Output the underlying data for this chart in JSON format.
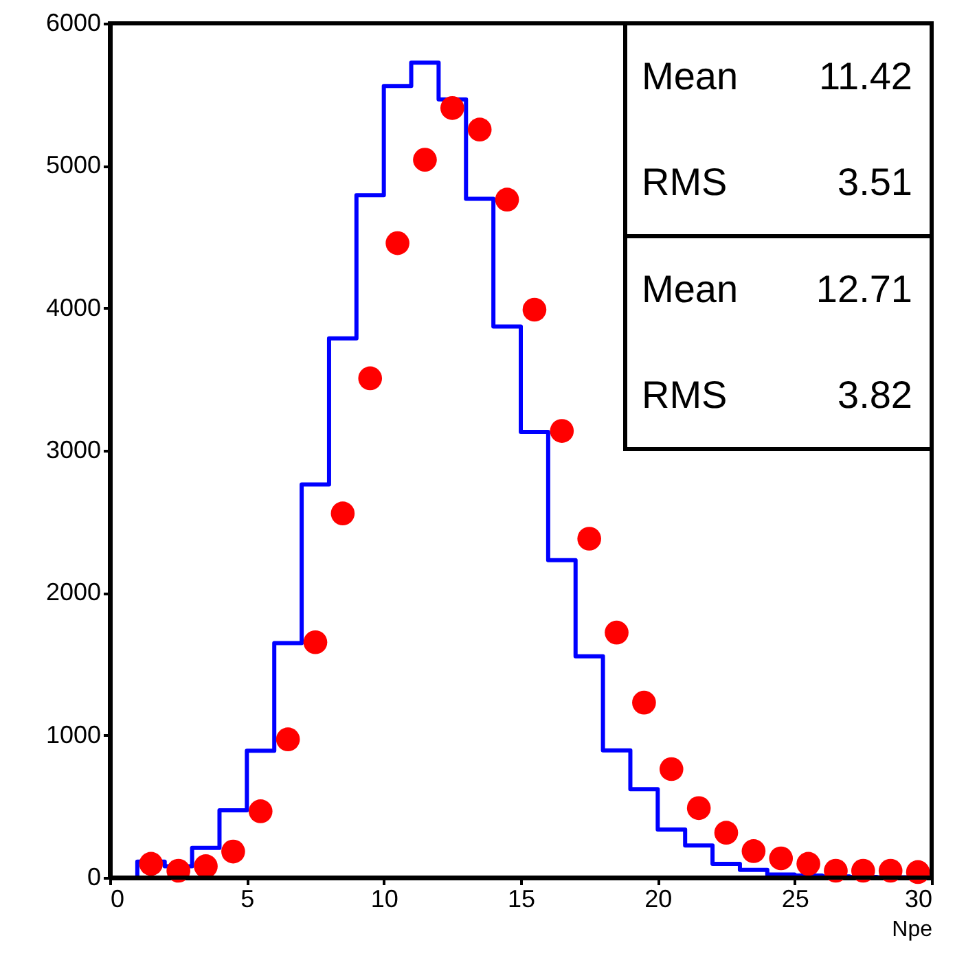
{
  "chart_data": {
    "type": "histogram",
    "xlabel": "Npe",
    "xlim": [
      0,
      30
    ],
    "xticks": [
      0,
      5,
      10,
      15,
      20,
      25,
      30
    ],
    "ylim": [
      0,
      6000
    ],
    "yticks": [
      0,
      1000,
      2000,
      3000,
      4000,
      5000,
      6000
    ],
    "grid": false,
    "series": [
      {
        "type": "histogram",
        "color": "#0000ff",
        "bins": [
          0,
          1,
          2,
          3,
          4,
          5,
          6,
          7,
          8,
          9,
          10,
          11,
          12,
          13,
          14,
          15,
          16,
          17,
          18,
          19,
          20,
          21,
          22,
          23,
          24,
          25,
          26,
          27,
          28,
          29,
          30
        ],
        "values": [
          0,
          112,
          80,
          208,
          473,
          891,
          1647,
          2761,
          3787,
          4793,
          5560,
          5724,
          5466,
          4768,
          3871,
          3130,
          2230,
          1554,
          894,
          621,
          338,
          225,
          97,
          54,
          22,
          15,
          8,
          5,
          3,
          2
        ]
      },
      {
        "type": "scatter",
        "color": "#ff0000",
        "marker": "circle",
        "x": [
          1.5,
          2.5,
          3.5,
          4.5,
          5.5,
          6.5,
          7.5,
          8.5,
          9.5,
          10.5,
          11.5,
          12.5,
          13.5,
          14.5,
          15.5,
          16.5,
          17.5,
          18.5,
          19.5,
          20.5,
          21.5,
          22.5,
          23.5,
          24.5,
          25.5,
          26.5,
          27.5,
          28.5,
          29.5
        ],
        "values": [
          97,
          48,
          80,
          183,
          466,
          971,
          1653,
          2558,
          3507,
          4456,
          5042,
          5405,
          5254,
          4762,
          3989,
          3137,
          2380,
          1721,
          1229,
          762,
          488,
          315,
          186,
          135,
          97,
          48,
          48,
          48,
          39
        ]
      }
    ],
    "annotations": [
      "Mean 11.42",
      "RMS 3.51",
      "Mean 12.71",
      "RMS 3.82"
    ]
  }
}
